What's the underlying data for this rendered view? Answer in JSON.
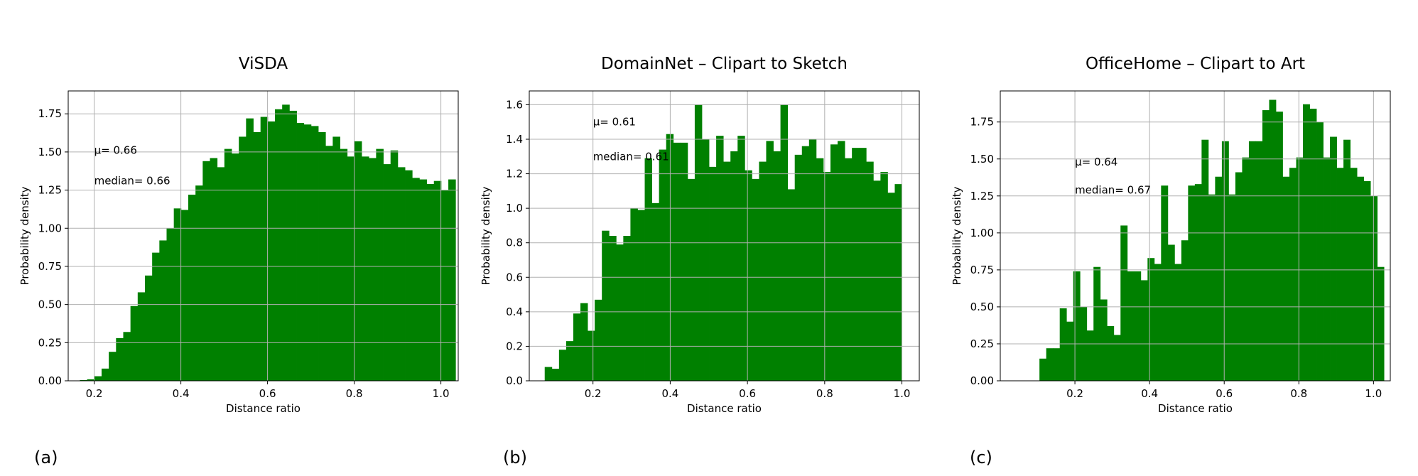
{
  "chart_data": [
    {
      "type": "bar",
      "subtype": "histogram",
      "title": "ViSDA",
      "xlabel": "Distance ratio",
      "ylabel": "Probability density",
      "panel_label": "(a)",
      "xlim": [
        0.14,
        1.04
      ],
      "ylim": [
        0,
        1.9
      ],
      "xticks": [
        0.2,
        0.4,
        0.6,
        0.8,
        1.0
      ],
      "xtick_labels": [
        "0.2",
        "0.4",
        "0.6",
        "0.8",
        "1.0"
      ],
      "yticks": [
        0,
        0.25,
        0.5,
        0.75,
        1.0,
        1.25,
        1.5,
        1.75
      ],
      "ytick_labels": [
        "0.00",
        "0.25",
        "0.50",
        "0.75",
        "1.00",
        "1.25",
        "1.50",
        "1.75"
      ],
      "grid": true,
      "color": "#008000",
      "annotations": [
        {
          "text": "μ= 0.66",
          "x": 0.2,
          "y": 1.51
        },
        {
          "text": "median= 0.66",
          "x": 0.2,
          "y": 1.31
        }
      ],
      "bin_start": 0.167,
      "bin_width": 0.01667,
      "values": [
        0.005,
        0.01,
        0.03,
        0.08,
        0.19,
        0.28,
        0.32,
        0.49,
        0.58,
        0.69,
        0.84,
        0.92,
        1.0,
        1.13,
        1.12,
        1.22,
        1.28,
        1.44,
        1.46,
        1.4,
        1.52,
        1.49,
        1.6,
        1.72,
        1.63,
        1.73,
        1.7,
        1.78,
        1.81,
        1.77,
        1.69,
        1.68,
        1.67,
        1.63,
        1.54,
        1.6,
        1.52,
        1.47,
        1.57,
        1.47,
        1.46,
        1.52,
        1.42,
        1.51,
        1.4,
        1.38,
        1.33,
        1.32,
        1.29,
        1.31,
        1.25,
        1.32
      ]
    },
    {
      "type": "bar",
      "subtype": "histogram",
      "title": "DomainNet – Clipart to Sketch",
      "xlabel": "Distance ratio",
      "ylabel": "Probability density",
      "panel_label": "(b)",
      "xlim": [
        0.035,
        1.045
      ],
      "ylim": [
        0,
        1.68
      ],
      "xticks": [
        0.2,
        0.4,
        0.6,
        0.8,
        1.0
      ],
      "xtick_labels": [
        "0.2",
        "0.4",
        "0.6",
        "0.8",
        "1.0"
      ],
      "yticks": [
        0,
        0.2,
        0.4,
        0.6,
        0.8,
        1.0,
        1.2,
        1.4,
        1.6
      ],
      "ytick_labels": [
        "0.0",
        "0.2",
        "0.4",
        "0.6",
        "0.8",
        "1.0",
        "1.2",
        "1.4",
        "1.6"
      ],
      "grid": true,
      "color": "#008000",
      "annotations": [
        {
          "text": "μ= 0.61",
          "x": 0.2,
          "y": 1.5
        },
        {
          "text": "median= 0.61",
          "x": 0.2,
          "y": 1.3
        }
      ],
      "bin_start": 0.075,
      "bin_width": 0.0185,
      "values": [
        0.08,
        0.07,
        0.18,
        0.23,
        0.39,
        0.45,
        0.29,
        0.47,
        0.87,
        0.84,
        0.79,
        0.84,
        1.0,
        0.99,
        1.29,
        1.03,
        1.34,
        1.43,
        1.38,
        1.38,
        1.17,
        1.6,
        1.4,
        1.24,
        1.42,
        1.27,
        1.33,
        1.42,
        1.22,
        1.17,
        1.27,
        1.39,
        1.33,
        1.6,
        1.11,
        1.31,
        1.36,
        1.4,
        1.29,
        1.21,
        1.37,
        1.39,
        1.29,
        1.35,
        1.35,
        1.27,
        1.16,
        1.21,
        1.09,
        1.14
      ]
    },
    {
      "type": "bar",
      "subtype": "histogram",
      "title": "OfficeHome – Clipart to Art",
      "xlabel": "Distance ratio",
      "ylabel": "Probability density",
      "panel_label": "(c)",
      "xlim": [
        0.0,
        1.045
      ],
      "ylim": [
        0,
        1.96
      ],
      "xticks": [
        0.2,
        0.4,
        0.6,
        0.8,
        1.0
      ],
      "xtick_labels": [
        "0.2",
        "0.4",
        "0.6",
        "0.8",
        "1.0"
      ],
      "yticks": [
        0,
        0.25,
        0.5,
        0.75,
        1.0,
        1.25,
        1.5,
        1.75
      ],
      "ytick_labels": [
        "0.00",
        "0.25",
        "0.50",
        "0.75",
        "1.00",
        "1.25",
        "1.50",
        "1.75"
      ],
      "grid": true,
      "color": "#008000",
      "annotations": [
        {
          "text": "μ= 0.64",
          "x": 0.2,
          "y": 1.48
        },
        {
          "text": "median= 0.67",
          "x": 0.2,
          "y": 1.29
        }
      ],
      "bin_start": 0.105,
      "bin_width": 0.0181,
      "values": [
        0.15,
        0.22,
        0.22,
        0.49,
        0.4,
        0.74,
        0.5,
        0.34,
        0.77,
        0.55,
        0.37,
        0.31,
        1.05,
        0.74,
        0.74,
        0.68,
        0.83,
        0.79,
        1.32,
        0.92,
        0.79,
        0.95,
        1.32,
        1.33,
        1.63,
        1.26,
        1.38,
        1.62,
        1.26,
        1.41,
        1.51,
        1.62,
        1.62,
        1.83,
        1.9,
        1.82,
        1.38,
        1.44,
        1.51,
        1.87,
        1.84,
        1.75,
        1.51,
        1.65,
        1.44,
        1.63,
        1.44,
        1.38,
        1.35,
        1.25,
        0.77
      ]
    }
  ]
}
